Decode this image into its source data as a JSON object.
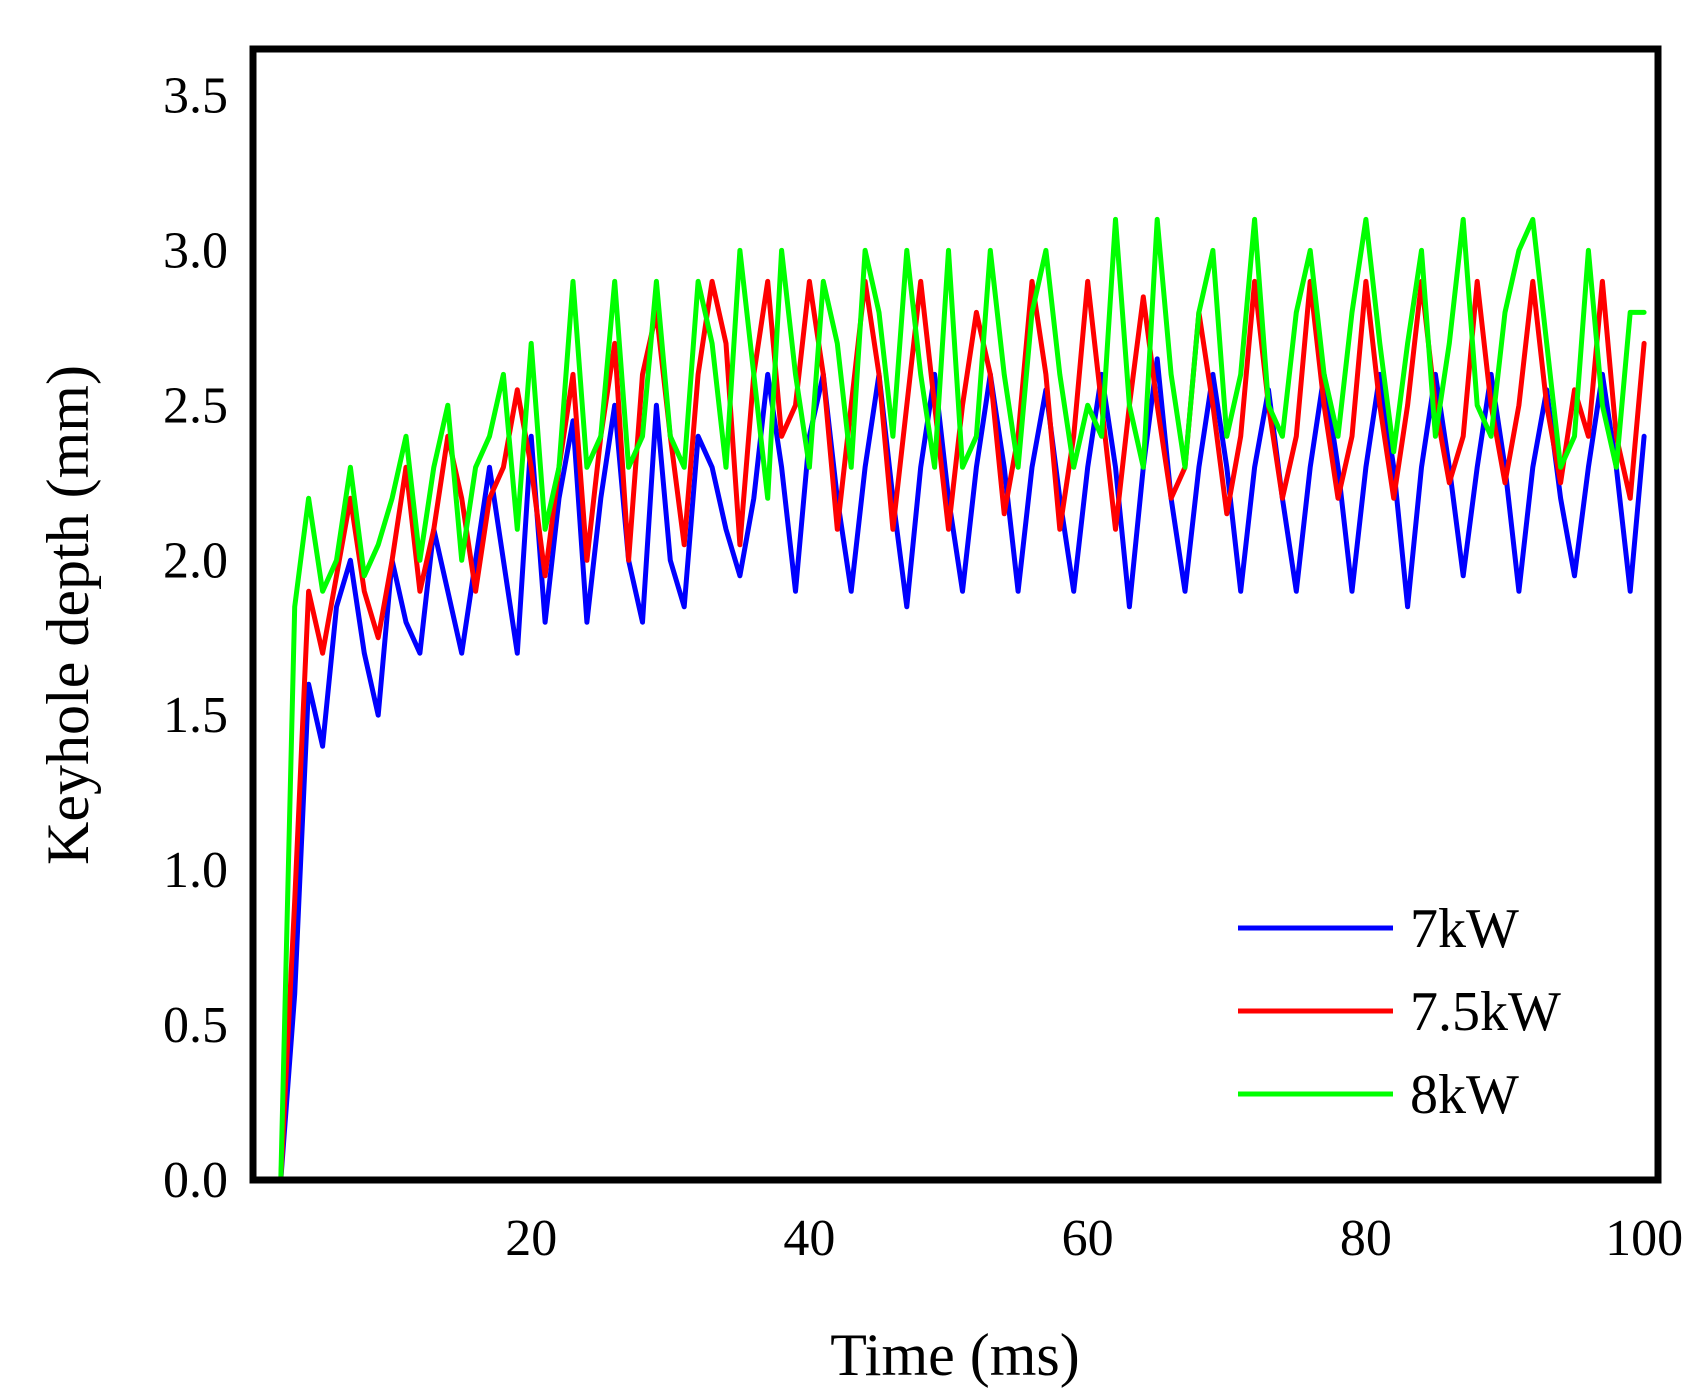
{
  "chart_data": {
    "type": "line",
    "title": "",
    "xlabel": "Time (ms)",
    "ylabel": "Keyhole depth (mm)",
    "xlim": [
      0,
      101
    ],
    "ylim": [
      0,
      3.65
    ],
    "xticks": [
      20,
      40,
      60,
      80,
      100
    ],
    "yticks": [
      0.0,
      0.5,
      1.0,
      1.5,
      2.0,
      2.5,
      3.0,
      3.5
    ],
    "ytick_labels": [
      "0.0",
      "0.5",
      "1.0",
      "1.5",
      "2.0",
      "2.5",
      "3.0",
      "3.5"
    ],
    "xtick_labels": [
      "20",
      "40",
      "60",
      "80",
      "100"
    ],
    "grid": false,
    "legend_position": "bottom-right",
    "series": [
      {
        "name": "7kW",
        "color": "#0000ff",
        "x": [
          1,
          2,
          3,
          4,
          5,
          6,
          7,
          8,
          9,
          10,
          11,
          12,
          13,
          14,
          15,
          16,
          17,
          18,
          19,
          20,
          21,
          22,
          23,
          24,
          25,
          26,
          27,
          28,
          29,
          30,
          31,
          32,
          33,
          34,
          35,
          36,
          37,
          38,
          39,
          40,
          41,
          42,
          43,
          44,
          45,
          46,
          47,
          48,
          49,
          50,
          51,
          52,
          53,
          54,
          55,
          56,
          57,
          58,
          59,
          60,
          61,
          62,
          63,
          64,
          65,
          66,
          67,
          68,
          69,
          70,
          71,
          72,
          73,
          74,
          75,
          76,
          77,
          78,
          79,
          80,
          81,
          82,
          83,
          84,
          85,
          86,
          87,
          88,
          89,
          90,
          91,
          92,
          93,
          94,
          95,
          96,
          97,
          98,
          99,
          100
        ],
        "values": [
          0,
          0,
          0.6,
          1.6,
          1.4,
          1.85,
          2.0,
          1.7,
          1.5,
          2.0,
          1.8,
          1.7,
          2.1,
          1.9,
          1.7,
          2.0,
          2.3,
          2.0,
          1.7,
          2.4,
          1.8,
          2.2,
          2.45,
          1.8,
          2.2,
          2.5,
          2.0,
          1.8,
          2.5,
          2.0,
          1.85,
          2.4,
          2.3,
          2.1,
          1.95,
          2.2,
          2.6,
          2.3,
          1.9,
          2.4,
          2.6,
          2.2,
          1.9,
          2.3,
          2.6,
          2.2,
          1.85,
          2.3,
          2.6,
          2.2,
          1.9,
          2.3,
          2.6,
          2.3,
          1.9,
          2.3,
          2.55,
          2.2,
          1.9,
          2.3,
          2.6,
          2.3,
          1.85,
          2.3,
          2.65,
          2.2,
          1.9,
          2.3,
          2.6,
          2.3,
          1.9,
          2.3,
          2.55,
          2.2,
          1.9,
          2.3,
          2.6,
          2.3,
          1.9,
          2.3,
          2.6,
          2.3,
          1.85,
          2.3,
          2.6,
          2.3,
          1.95,
          2.3,
          2.6,
          2.3,
          1.9,
          2.3,
          2.55,
          2.2,
          1.95,
          2.3,
          2.6,
          2.3,
          1.9,
          2.4
        ]
      },
      {
        "name": "7.5kW",
        "color": "#ff0000",
        "x": [
          1,
          2,
          3,
          4,
          5,
          6,
          7,
          8,
          9,
          10,
          11,
          12,
          13,
          14,
          15,
          16,
          17,
          18,
          19,
          20,
          21,
          22,
          23,
          24,
          25,
          26,
          27,
          28,
          29,
          30,
          31,
          32,
          33,
          34,
          35,
          36,
          37,
          38,
          39,
          40,
          41,
          42,
          43,
          44,
          45,
          46,
          47,
          48,
          49,
          50,
          51,
          52,
          53,
          54,
          55,
          56,
          57,
          58,
          59,
          60,
          61,
          62,
          63,
          64,
          65,
          66,
          67,
          68,
          69,
          70,
          71,
          72,
          73,
          74,
          75,
          76,
          77,
          78,
          79,
          80,
          81,
          82,
          83,
          84,
          85,
          86,
          87,
          88,
          89,
          90,
          91,
          92,
          93,
          94,
          95,
          96,
          97,
          98,
          99,
          100
        ],
        "values": [
          0,
          0,
          0.9,
          1.9,
          1.7,
          1.95,
          2.2,
          1.9,
          1.75,
          2.0,
          2.3,
          1.9,
          2.1,
          2.4,
          2.2,
          1.9,
          2.2,
          2.3,
          2.55,
          2.3,
          1.95,
          2.3,
          2.6,
          2.0,
          2.4,
          2.7,
          2.0,
          2.6,
          2.8,
          2.4,
          2.05,
          2.6,
          2.9,
          2.7,
          2.05,
          2.6,
          2.9,
          2.4,
          2.5,
          2.9,
          2.6,
          2.1,
          2.5,
          2.9,
          2.6,
          2.1,
          2.5,
          2.9,
          2.5,
          2.1,
          2.5,
          2.8,
          2.6,
          2.15,
          2.4,
          2.9,
          2.6,
          2.1,
          2.4,
          2.9,
          2.5,
          2.1,
          2.5,
          2.85,
          2.5,
          2.2,
          2.3,
          2.8,
          2.5,
          2.15,
          2.4,
          2.9,
          2.5,
          2.2,
          2.4,
          2.9,
          2.5,
          2.2,
          2.4,
          2.9,
          2.5,
          2.2,
          2.5,
          2.9,
          2.5,
          2.25,
          2.4,
          2.9,
          2.5,
          2.25,
          2.5,
          2.9,
          2.5,
          2.25,
          2.55,
          2.4,
          2.9,
          2.4,
          2.2,
          2.7
        ]
      },
      {
        "name": "8kW",
        "color": "#00ff00",
        "x": [
          1,
          2,
          3,
          4,
          5,
          6,
          7,
          8,
          9,
          10,
          11,
          12,
          13,
          14,
          15,
          16,
          17,
          18,
          19,
          20,
          21,
          22,
          23,
          24,
          25,
          26,
          27,
          28,
          29,
          30,
          31,
          32,
          33,
          34,
          35,
          36,
          37,
          38,
          39,
          40,
          41,
          42,
          43,
          44,
          45,
          46,
          47,
          48,
          49,
          50,
          51,
          52,
          53,
          54,
          55,
          56,
          57,
          58,
          59,
          60,
          61,
          62,
          63,
          64,
          65,
          66,
          67,
          68,
          69,
          70,
          71,
          72,
          73,
          74,
          75,
          76,
          77,
          78,
          79,
          80,
          81,
          82,
          83,
          84,
          85,
          86,
          87,
          88,
          89,
          90,
          91,
          92,
          93,
          94,
          95,
          96,
          97,
          98,
          99,
          100
        ],
        "values": [
          0,
          0,
          1.85,
          2.2,
          1.9,
          2.0,
          2.3,
          1.95,
          2.05,
          2.2,
          2.4,
          2.0,
          2.3,
          2.5,
          2.0,
          2.3,
          2.4,
          2.6,
          2.1,
          2.7,
          2.1,
          2.3,
          2.9,
          2.3,
          2.4,
          2.9,
          2.3,
          2.4,
          2.9,
          2.4,
          2.3,
          2.9,
          2.7,
          2.3,
          3.0,
          2.6,
          2.2,
          3.0,
          2.6,
          2.3,
          2.9,
          2.7,
          2.3,
          3.0,
          2.8,
          2.4,
          3.0,
          2.6,
          2.3,
          3.0,
          2.3,
          2.4,
          3.0,
          2.6,
          2.3,
          2.8,
          3.0,
          2.6,
          2.3,
          2.5,
          2.4,
          3.1,
          2.5,
          2.3,
          3.1,
          2.6,
          2.3,
          2.8,
          3.0,
          2.4,
          2.6,
          3.1,
          2.5,
          2.4,
          2.8,
          3.0,
          2.6,
          2.4,
          2.8,
          3.1,
          2.7,
          2.35,
          2.7,
          3.0,
          2.4,
          2.7,
          3.1,
          2.5,
          2.4,
          2.8,
          3.0,
          3.1,
          2.7,
          2.3,
          2.4,
          3.0,
          2.5,
          2.3,
          2.8,
          2.8
        ]
      }
    ]
  }
}
